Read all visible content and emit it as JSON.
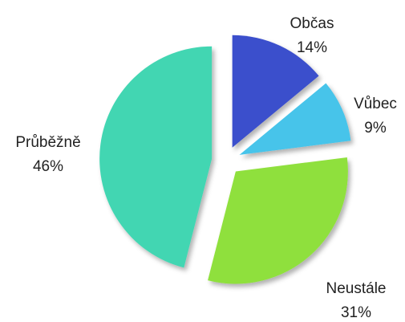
{
  "chart_data": {
    "type": "pie",
    "categories": [
      "Občas",
      "Vůbec",
      "Neustále",
      "Průběžně"
    ],
    "values": [
      14,
      9,
      31,
      46
    ],
    "value_labels": [
      "14%",
      "9%",
      "31%",
      "46%"
    ],
    "colors": [
      "#3b4fcc",
      "#46c4ea",
      "#8fe03c",
      "#42d6b2"
    ]
  }
}
